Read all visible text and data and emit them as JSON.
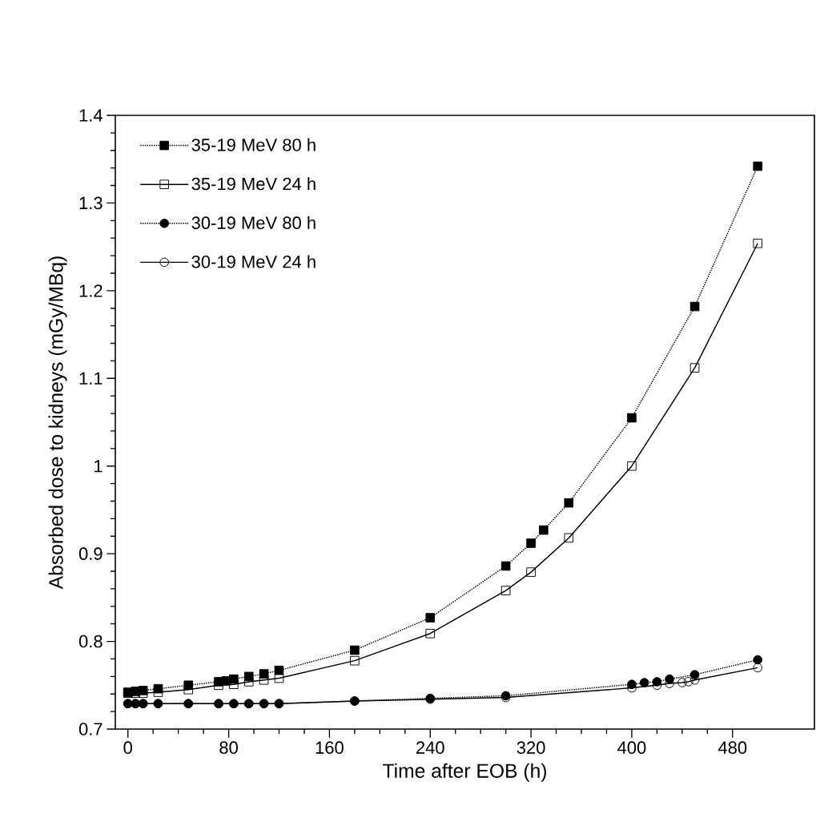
{
  "chart_data": {
    "type": "line",
    "xlabel": "Time after EOB (h)",
    "ylabel": "Absorbed dose to kidneys (mGy/MBq)",
    "xlim": [
      -10,
      545
    ],
    "ylim": [
      0.7,
      1.4
    ],
    "xticks": [
      0,
      80,
      160,
      240,
      320,
      400,
      480
    ],
    "yticks": [
      0.7,
      0.8,
      0.9,
      1,
      1.1,
      1.2,
      1.3,
      1.4
    ],
    "legend": "top left",
    "grid": false,
    "series": [
      {
        "name": "35-19 MeV 80 h",
        "color": "#000000",
        "marker": "square",
        "line_style": "dotted",
        "x": [
          0,
          6,
          12,
          24,
          48,
          72,
          78,
          84,
          96,
          108,
          120,
          180,
          240,
          300,
          320,
          330,
          350,
          400,
          450,
          500
        ],
        "values": [
          0.742,
          0.743,
          0.744,
          0.746,
          0.75,
          0.754,
          0.755,
          0.757,
          0.76,
          0.763,
          0.767,
          0.79,
          0.827,
          0.886,
          0.912,
          0.927,
          0.958,
          1.055,
          1.182,
          1.342
        ]
      },
      {
        "name": "35-19 MeV 24 h",
        "color": "#000000",
        "marker": "square",
        "line_style": "solid",
        "x": [
          0,
          6,
          12,
          24,
          48,
          72,
          84,
          96,
          108,
          120,
          180,
          240,
          300,
          320,
          350,
          400,
          450,
          500
        ],
        "values": [
          0.741,
          0.741,
          0.741,
          0.742,
          0.745,
          0.75,
          0.751,
          0.754,
          0.756,
          0.758,
          0.778,
          0.809,
          0.858,
          0.879,
          0.918,
          1.0,
          1.112,
          1.254
        ]
      },
      {
        "name": "30-19 MeV 80 h",
        "color": "#000000",
        "marker": "circle",
        "line_style": "dotted",
        "x": [
          0,
          6,
          12,
          24,
          48,
          72,
          84,
          96,
          108,
          120,
          180,
          240,
          300,
          400,
          410,
          420,
          430,
          450,
          500
        ],
        "values": [
          0.729,
          0.729,
          0.729,
          0.729,
          0.729,
          0.729,
          0.729,
          0.729,
          0.729,
          0.729,
          0.732,
          0.735,
          0.738,
          0.751,
          0.753,
          0.754,
          0.757,
          0.762,
          0.779
        ]
      },
      {
        "name": "30-19 MeV 24 h",
        "color": "#000000",
        "marker": "circle",
        "line_style": "solid",
        "x": [
          0,
          6,
          12,
          24,
          48,
          72,
          84,
          96,
          108,
          120,
          180,
          240,
          300,
          400,
          420,
          430,
          440,
          445,
          450,
          500
        ],
        "values": [
          0.729,
          0.729,
          0.729,
          0.729,
          0.729,
          0.729,
          0.729,
          0.729,
          0.729,
          0.729,
          0.732,
          0.734,
          0.736,
          0.747,
          0.75,
          0.752,
          0.753,
          0.754,
          0.756,
          0.77
        ]
      }
    ]
  }
}
